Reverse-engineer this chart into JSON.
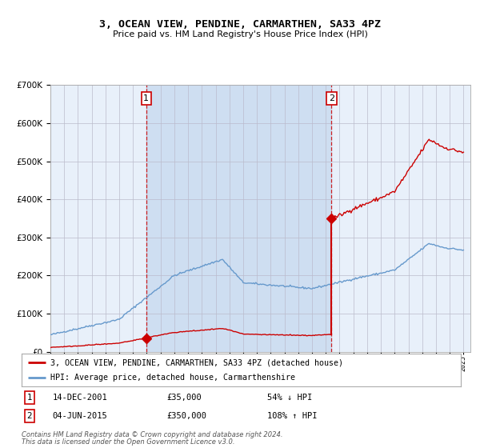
{
  "title": "3, OCEAN VIEW, PENDINE, CARMARTHEN, SA33 4PZ",
  "subtitle": "Price paid vs. HM Land Registry's House Price Index (HPI)",
  "legend_line1": "3, OCEAN VIEW, PENDINE, CARMARTHEN, SA33 4PZ (detached house)",
  "legend_line2": "HPI: Average price, detached house, Carmarthenshire",
  "annotation1_date": "14-DEC-2001",
  "annotation1_price": "£35,000",
  "annotation1_hpi": "54% ↓ HPI",
  "annotation2_date": "04-JUN-2015",
  "annotation2_price": "£350,000",
  "annotation2_hpi": "108% ↑ HPI",
  "footnote1": "Contains HM Land Registry data © Crown copyright and database right 2024.",
  "footnote2": "This data is licensed under the Open Government Licence v3.0.",
  "sale1_year": 2001.96,
  "sale1_price": 35000,
  "sale2_year": 2015.42,
  "sale2_price": 350000,
  "hpi_color": "#6699cc",
  "price_color": "#cc0000",
  "ylim_max": 700000,
  "ylim_min": 0,
  "xmin": 1995,
  "xmax": 2025.5
}
